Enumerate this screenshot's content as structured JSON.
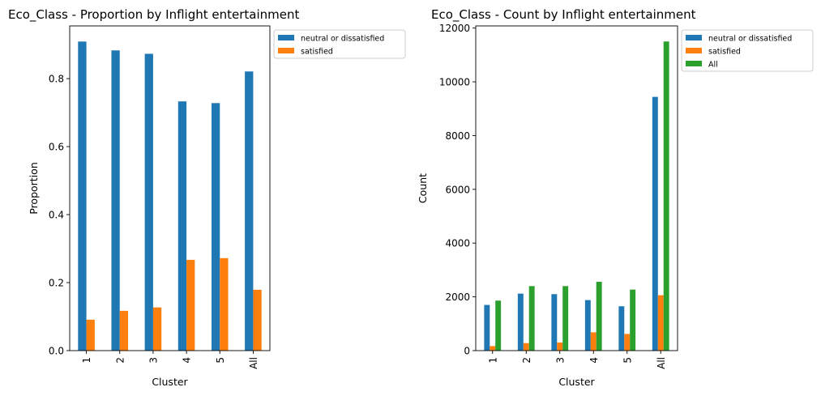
{
  "chart_data": [
    {
      "type": "bar",
      "title": "Eco_Class - Proportion by Inflight entertainment",
      "xlabel": "Cluster",
      "ylabel": "Proportion",
      "categories": [
        "1",
        "2",
        "3",
        "4",
        "5",
        "All"
      ],
      "ylim": [
        0,
        0.955
      ],
      "yticks": [
        0.0,
        0.2,
        0.4,
        0.6,
        0.8
      ],
      "ytick_labels": [
        "0.0",
        "0.2",
        "0.4",
        "0.6",
        "0.8"
      ],
      "legend_position": "outside upper right",
      "series": [
        {
          "name": "neutral or dissatisfied",
          "color": "#1f77b4",
          "values": [
            0.909,
            0.883,
            0.873,
            0.733,
            0.728,
            0.821
          ]
        },
        {
          "name": "satisfied",
          "color": "#ff7f0e",
          "values": [
            0.091,
            0.117,
            0.127,
            0.267,
            0.272,
            0.179
          ]
        }
      ]
    },
    {
      "type": "bar",
      "title": "Eco_Class - Count by Inflight entertainment",
      "xlabel": "Cluster",
      "ylabel": "Count",
      "categories": [
        "1",
        "2",
        "3",
        "4",
        "5",
        "All"
      ],
      "ylim": [
        0,
        12080
      ],
      "yticks": [
        0,
        2000,
        4000,
        6000,
        8000,
        10000,
        12000
      ],
      "ytick_labels": [
        "0",
        "2000",
        "4000",
        "6000",
        "8000",
        "10000",
        "12000"
      ],
      "legend_position": "outside upper right",
      "series": [
        {
          "name": "neutral or dissatisfied",
          "color": "#1f77b4",
          "values": [
            1700,
            2120,
            2100,
            1880,
            1650,
            9440
          ]
        },
        {
          "name": "satisfied",
          "color": "#ff7f0e",
          "values": [
            170,
            280,
            300,
            680,
            620,
            2060
          ]
        },
        {
          "name": "All",
          "color": "#2ca02c",
          "values": [
            1860,
            2400,
            2400,
            2560,
            2270,
            11500
          ]
        }
      ]
    }
  ]
}
